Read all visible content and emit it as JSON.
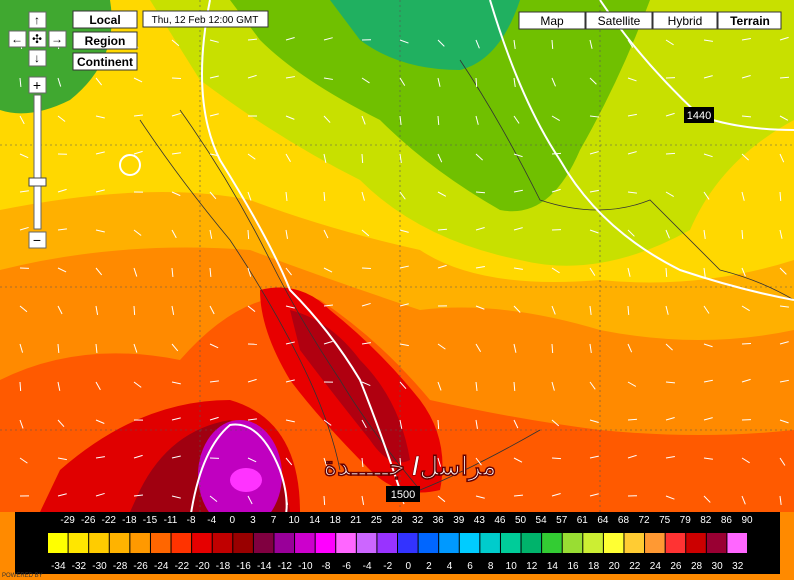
{
  "controls": {
    "pan": [
      "↑",
      "←",
      "✣",
      "→",
      "↓"
    ],
    "zoom_in": "+",
    "zoom_out": "−",
    "views": [
      "Local",
      "Region",
      "Continent"
    ],
    "timestamp": "Thu, 12 Feb 12:00 GMT",
    "map_types": [
      "Map",
      "Satellite",
      "Hybrid",
      "Terrain"
    ]
  },
  "map": {
    "contour_labels": [
      "1440",
      "1500"
    ],
    "watermark": "مراسل/ جـــــدة",
    "footer": "POWERED BY"
  },
  "legend": {
    "top_labels": [
      "-29",
      "-26",
      "-22",
      "-18",
      "-15",
      "-11",
      "-8",
      "-4",
      "0",
      "3",
      "7",
      "10",
      "14",
      "18",
      "21",
      "25",
      "28",
      "32",
      "36",
      "39",
      "43",
      "46",
      "50",
      "54",
      "57",
      "61",
      "64",
      "68",
      "72",
      "75",
      "79",
      "82",
      "86",
      "90"
    ],
    "bottom_labels": [
      "-34",
      "-32",
      "-30",
      "-28",
      "-26",
      "-24",
      "-22",
      "-20",
      "-18",
      "-16",
      "-14",
      "-12",
      "-10",
      "-8",
      "-6",
      "-4",
      "-2",
      "0",
      "2",
      "4",
      "6",
      "8",
      "10",
      "12",
      "14",
      "16",
      "18",
      "20",
      "22",
      "24",
      "26",
      "28",
      "30",
      "32"
    ],
    "colors": [
      "#ffff00",
      "#ffe600",
      "#ffcc00",
      "#ffb300",
      "#ff9900",
      "#ff6600",
      "#ff3300",
      "#e60000",
      "#c00000",
      "#990000",
      "#800040",
      "#990099",
      "#cc00cc",
      "#ff00ff",
      "#ff66ff",
      "#cc66ff",
      "#9933ff",
      "#3333ff",
      "#0066ff",
      "#0099ff",
      "#00ccff",
      "#00cccc",
      "#00cc99",
      "#00b36b",
      "#33cc33",
      "#99dd33",
      "#ccee33",
      "#ffff33",
      "#ffcc33",
      "#ff9933",
      "#ff3333",
      "#cc0000",
      "#990033",
      "#ff66ff"
    ]
  }
}
